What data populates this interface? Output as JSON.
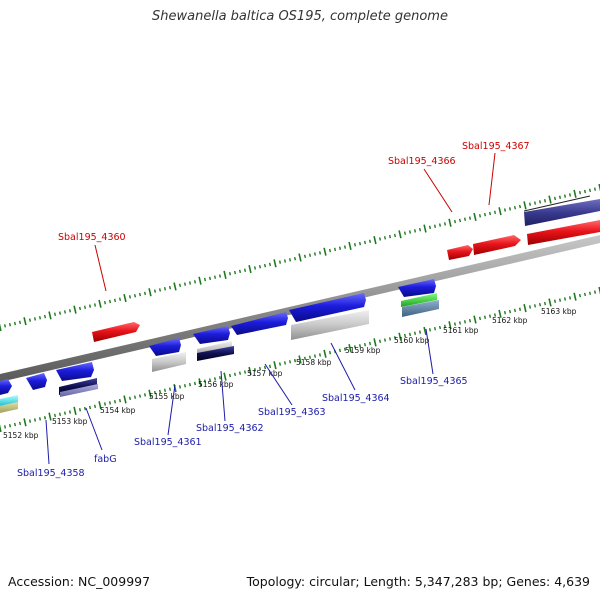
{
  "title": "Shewanella baltica OS195, complete genome",
  "footer": {
    "accession": "Accession: NC_009997",
    "summary": "Topology: circular; Length: 5,347,283 bp; Genes: 4,639"
  },
  "colors": {
    "forward_gene": "#e8141b",
    "reverse_gene": "#1c1cdc",
    "backbone": "#8a8a8a",
    "ticks": "#1f7a1f",
    "forward_label": "#cc0000",
    "reverse_label": "#1c1ca8"
  },
  "kbp_labels": [
    "5152 kbp",
    "5153 kbp",
    "5154 kbp",
    "5155 kbp",
    "5156 kbp",
    "5157 kbp",
    "5158 kbp",
    "5159 kbp",
    "5160 kbp",
    "5161 kbp",
    "5162 kbp",
    "5163 kbp"
  ],
  "gene_labels": {
    "forward": [
      "Sbal195_4360",
      "Sbal195_4366",
      "Sbal195_4367"
    ],
    "reverse": [
      "Sbal195_4358",
      "fabG",
      "Sbal195_4361",
      "Sbal195_4362",
      "Sbal195_4363",
      "Sbal195_4364",
      "Sbal195_4365"
    ]
  }
}
